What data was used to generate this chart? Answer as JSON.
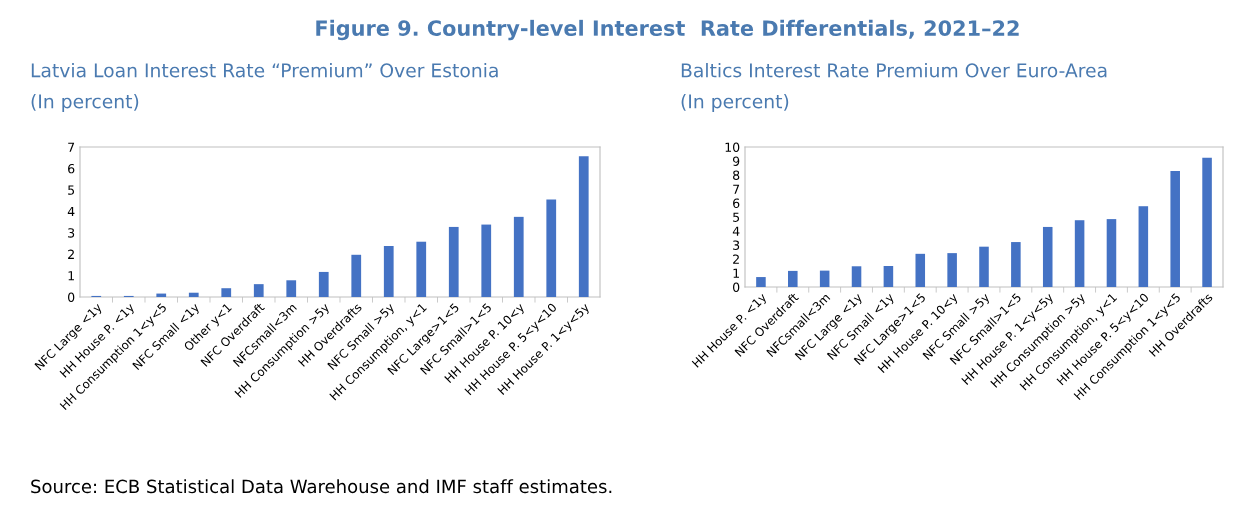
{
  "chart_data": [
    {
      "type": "bar",
      "title": "Figure 9. Country-level Interest  Rate Differentials, 2021–22",
      "subtitle": "Latvia Loan Interest Rate “Premium” Over Estonia",
      "ylabel": "(In percent)",
      "categories": [
        "NFC Large <1y",
        "HH House P. <1y",
        "HH Consumption 1<y<5",
        "NFC Small <1y",
        "Other y<1",
        "NFC Overdraft",
        "NFCsmall<3m",
        "HH Consumption >5y",
        "HH Overdrafts",
        "NFC Small >5y",
        "HH Consumption, y<1",
        "NFC Large>1<5",
        "NFC Small>1<5",
        "HH House P. 10<y",
        "HH House P. 5<y<10",
        "HH House P. 1<y<5y"
      ],
      "values": [
        0.05,
        0.05,
        0.16,
        0.2,
        0.41,
        0.6,
        0.78,
        1.17,
        1.97,
        2.38,
        2.58,
        3.27,
        3.38,
        3.74,
        4.55,
        6.57
      ],
      "color": "#4472c4",
      "ylim": [
        0,
        7
      ],
      "yticks": [
        0,
        1,
        2,
        3,
        4,
        5,
        6,
        7
      ],
      "grid": false,
      "legend": false,
      "annotations": [
        "Source: ECB Statistical Data Warehouse and IMF staff estimates."
      ]
    },
    {
      "type": "bar",
      "subtitle": "Baltics Interest Rate Premium Over Euro-Area",
      "ylabel": "(In percent)",
      "categories": [
        "HH House P. <1y",
        "NFC Overdraft",
        "NFCsmall<3m",
        "NFC Large <1y",
        "NFC Small <1y",
        "NFC Large>1<5",
        "HH House P. 10<y",
        "NFC Small >5y",
        "NFC Small>1<5",
        "HH House P. 1<y<5y",
        "HH Consumption >5y",
        "HH Consumption, y<1",
        "HH House P. 5<y<10",
        "HH Consumption 1<y<5",
        "HH Overdrafts"
      ],
      "values": [
        0.71,
        1.15,
        1.17,
        1.48,
        1.5,
        2.37,
        2.42,
        2.88,
        3.21,
        4.29,
        4.77,
        4.85,
        5.77,
        8.29,
        9.23
      ],
      "color": "#4472c4",
      "ylim": [
        0,
        10
      ],
      "yticks": [
        0,
        1,
        2,
        3,
        4,
        5,
        6,
        7,
        8,
        9,
        10
      ],
      "grid": false,
      "legend": false
    }
  ]
}
